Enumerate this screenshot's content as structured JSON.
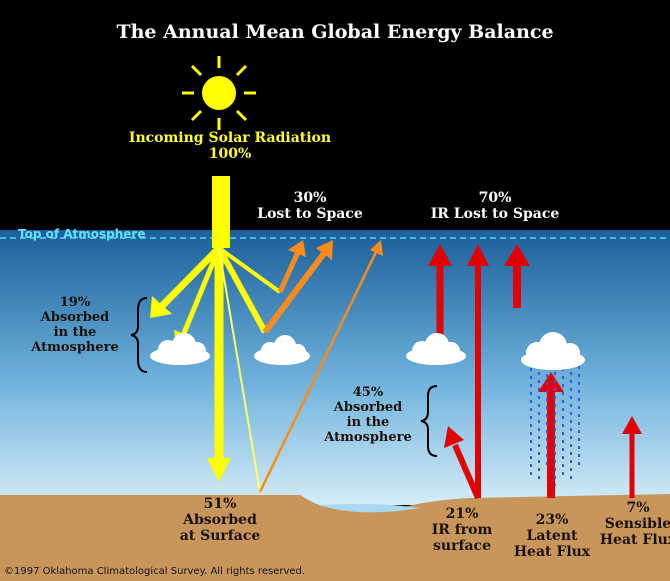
{
  "title": "The Annual Mean Global Energy Balance",
  "top_of_atmosphere": "Top of Atmosphere",
  "incoming": {
    "line1": "Incoming Solar Radiation",
    "line2": "100%"
  },
  "lost_to_space": {
    "line1": "30%",
    "line2": "Lost to Space"
  },
  "ir_lost": {
    "line1": "70%",
    "line2": "IR Lost to Space"
  },
  "absorbed_atmosphere_left": {
    "line1": "19%",
    "line2": "Absorbed",
    "line3": "in the",
    "line4": "Atmosphere"
  },
  "absorbed_atmosphere_right": {
    "line1": "45%",
    "line2": "Absorbed",
    "line3": "in the",
    "line4": "Atmosphere"
  },
  "absorbed_surface": {
    "line1": "51%",
    "line2": "Absorbed",
    "line3": "at Surface"
  },
  "ir_surface": {
    "line1": "21%",
    "line2": "IR from",
    "line3": "surface"
  },
  "latent": {
    "line1": "23%",
    "line2": "Latent",
    "line3": "Heat Flux"
  },
  "sensible": {
    "line1": "7%",
    "line2": "Sensible",
    "line3": "Heat Flux"
  },
  "copyright": "©1997 Oklahoma Climatological Survey.  All rights reserved.",
  "colors": {
    "space": "#000000",
    "sky_top": "#1a5f9a",
    "sky_bottom": "#cfe6f5",
    "ground": "#c8965a",
    "solar": "#ffff00",
    "reflected": "#ff8c1a",
    "infrared": "#e00000",
    "text_light": "#ffffff",
    "text_solar": "#ffff33"
  }
}
